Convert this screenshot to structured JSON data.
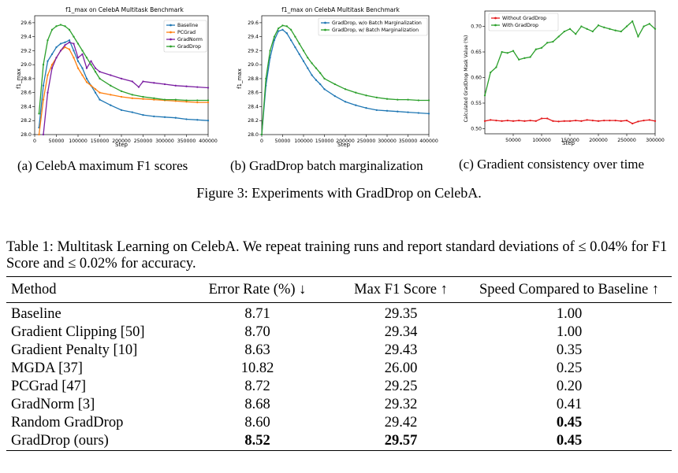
{
  "charts": [
    {
      "type": "line",
      "title": "f1_max on CelebA Multitask Benchmark",
      "xlabel": "Step",
      "ylabel": "f1_max",
      "xlim": [
        0,
        400000
      ],
      "ylim": [
        28.0,
        29.7
      ],
      "xticks": [
        0,
        50000,
        100000,
        150000,
        200000,
        250000,
        300000,
        350000,
        400000
      ],
      "yticks": [
        28.0,
        28.2,
        28.4,
        28.6,
        28.8,
        29.0,
        29.2,
        29.4,
        29.6
      ],
      "ydecimals": 1,
      "legend_position": "top-right",
      "series": [
        {
          "name": "Baseline",
          "color": "#1f77b4",
          "x": [
            10000,
            20000,
            30000,
            40000,
            50000,
            60000,
            70000,
            80000,
            90000,
            100000,
            110000,
            120000,
            130000,
            140000,
            150000,
            175000,
            200000,
            225000,
            250000,
            275000,
            300000,
            325000,
            350000,
            375000,
            400000
          ],
          "y": [
            28.1,
            28.7,
            29.05,
            29.15,
            29.25,
            29.3,
            29.32,
            29.35,
            29.2,
            29.05,
            28.95,
            28.8,
            28.7,
            28.6,
            28.5,
            28.42,
            28.35,
            28.32,
            28.28,
            28.26,
            28.25,
            28.24,
            28.22,
            28.21,
            28.2
          ]
        },
        {
          "name": "PCGrad",
          "color": "#ff7f0e",
          "x": [
            10000,
            20000,
            30000,
            40000,
            50000,
            60000,
            70000,
            80000,
            90000,
            100000,
            110000,
            120000,
            130000,
            140000,
            150000,
            175000,
            200000,
            225000,
            250000,
            275000,
            300000,
            325000,
            350000,
            375000,
            400000
          ],
          "y": [
            28.0,
            28.5,
            28.85,
            29.0,
            29.1,
            29.2,
            29.25,
            29.22,
            29.1,
            28.95,
            28.85,
            28.75,
            28.7,
            28.65,
            28.6,
            28.57,
            28.54,
            28.52,
            28.51,
            28.5,
            28.49,
            28.48,
            28.47,
            28.46,
            28.46
          ]
        },
        {
          "name": "GradNorm",
          "color": "#7b1fa2",
          "x": [
            20000,
            30000,
            40000,
            50000,
            60000,
            70000,
            80000,
            90000,
            100000,
            110000,
            120000,
            130000,
            140000,
            150000,
            175000,
            200000,
            225000,
            240000,
            250000,
            275000,
            300000,
            325000,
            350000,
            375000,
            400000
          ],
          "y": [
            28.0,
            28.6,
            28.95,
            29.1,
            29.2,
            29.28,
            29.32,
            29.3,
            29.1,
            29.15,
            28.95,
            29.05,
            28.95,
            28.9,
            28.85,
            28.8,
            28.76,
            28.68,
            28.76,
            28.74,
            28.72,
            28.7,
            28.69,
            28.68,
            28.67
          ]
        },
        {
          "name": "GradDrop",
          "color": "#2ca02c",
          "x": [
            10000,
            20000,
            30000,
            40000,
            50000,
            60000,
            70000,
            80000,
            90000,
            100000,
            110000,
            120000,
            130000,
            140000,
            150000,
            175000,
            200000,
            225000,
            250000,
            275000,
            300000,
            325000,
            350000,
            375000,
            400000
          ],
          "y": [
            28.3,
            29.0,
            29.35,
            29.5,
            29.55,
            29.57,
            29.55,
            29.5,
            29.4,
            29.3,
            29.2,
            29.1,
            29.0,
            28.9,
            28.8,
            28.7,
            28.62,
            28.57,
            28.54,
            28.52,
            28.5,
            28.5,
            28.49,
            28.49,
            28.49
          ]
        }
      ]
    },
    {
      "type": "line",
      "title": "f1_max on CelebA Multitask Benchmark",
      "xlabel": "Step",
      "ylabel": "f1_max",
      "xlim": [
        0,
        400000
      ],
      "ylim": [
        28.0,
        29.7
      ],
      "xticks": [
        0,
        50000,
        100000,
        150000,
        200000,
        250000,
        300000,
        350000,
        400000
      ],
      "yticks": [
        28.0,
        28.2,
        28.4,
        28.6,
        28.8,
        29.0,
        29.2,
        29.4,
        29.6
      ],
      "ydecimals": 1,
      "legend_position": "top-right",
      "series": [
        {
          "name": "GradDrop, w/o Batch Marginalization",
          "color": "#1f77b4",
          "x": [
            0,
            10000,
            20000,
            30000,
            40000,
            50000,
            60000,
            70000,
            80000,
            90000,
            100000,
            110000,
            120000,
            130000,
            140000,
            150000,
            175000,
            200000,
            225000,
            250000,
            275000,
            300000,
            325000,
            350000,
            375000,
            400000
          ],
          "y": [
            28.0,
            28.7,
            29.1,
            29.35,
            29.48,
            29.5,
            29.45,
            29.35,
            29.25,
            29.15,
            29.05,
            28.95,
            28.85,
            28.78,
            28.72,
            28.65,
            28.55,
            28.47,
            28.42,
            28.38,
            28.35,
            28.34,
            28.33,
            28.32,
            28.31,
            28.3
          ]
        },
        {
          "name": "GradDrop, w/ Batch Marginalization",
          "color": "#2ca02c",
          "x": [
            0,
            10000,
            20000,
            30000,
            40000,
            50000,
            60000,
            70000,
            80000,
            90000,
            100000,
            110000,
            120000,
            130000,
            140000,
            150000,
            175000,
            200000,
            225000,
            250000,
            275000,
            300000,
            325000,
            350000,
            375000,
            400000
          ],
          "y": [
            28.0,
            28.8,
            29.2,
            29.4,
            29.52,
            29.56,
            29.55,
            29.5,
            29.4,
            29.3,
            29.2,
            29.1,
            29.02,
            28.95,
            28.88,
            28.8,
            28.72,
            28.65,
            28.6,
            28.56,
            28.53,
            28.51,
            28.5,
            28.5,
            28.49,
            28.49
          ]
        }
      ]
    },
    {
      "type": "line",
      "title": "",
      "xlabel": "Step",
      "ylabel": "Calculated GradDrop Mask Value (%)",
      "xlim": [
        0,
        300000
      ],
      "ylim": [
        0.49,
        0.73
      ],
      "xticks": [
        50000,
        100000,
        150000,
        200000,
        250000,
        300000
      ],
      "yticks": [
        0.5,
        0.55,
        0.6,
        0.65,
        0.7
      ],
      "ydecimals": 2,
      "legend_position": "top-left",
      "series": [
        {
          "name": "Without GradDrop",
          "color": "#e41a1c",
          "x": [
            0,
            10000,
            20000,
            30000,
            40000,
            50000,
            60000,
            70000,
            80000,
            90000,
            100000,
            110000,
            120000,
            130000,
            140000,
            150000,
            160000,
            170000,
            180000,
            190000,
            200000,
            210000,
            220000,
            230000,
            240000,
            250000,
            260000,
            270000,
            280000,
            290000,
            300000
          ],
          "y": [
            0.515,
            0.517,
            0.516,
            0.515,
            0.516,
            0.515,
            0.516,
            0.515,
            0.516,
            0.515,
            0.52,
            0.52,
            0.515,
            0.514,
            0.515,
            0.515,
            0.516,
            0.515,
            0.517,
            0.516,
            0.515,
            0.516,
            0.516,
            0.516,
            0.515,
            0.516,
            0.51,
            0.514,
            0.516,
            0.517,
            0.515
          ]
        },
        {
          "name": "With GradDrop",
          "color": "#2ca02c",
          "x": [
            0,
            10000,
            20000,
            30000,
            40000,
            50000,
            60000,
            70000,
            80000,
            90000,
            100000,
            110000,
            120000,
            130000,
            140000,
            150000,
            160000,
            170000,
            180000,
            190000,
            200000,
            210000,
            220000,
            230000,
            240000,
            250000,
            260000,
            270000,
            280000,
            290000,
            300000
          ],
          "y": [
            0.565,
            0.61,
            0.62,
            0.65,
            0.648,
            0.652,
            0.635,
            0.638,
            0.64,
            0.655,
            0.658,
            0.668,
            0.67,
            0.68,
            0.69,
            0.695,
            0.685,
            0.7,
            0.695,
            0.69,
            0.702,
            0.698,
            0.695,
            0.692,
            0.69,
            0.7,
            0.71,
            0.68,
            0.7,
            0.705,
            0.695
          ]
        }
      ]
    }
  ],
  "subcaptions": [
    "(a) CelebA maximum F1 scores",
    "(b) GradDrop batch marginalization",
    "(c) Gradient consistency over time"
  ],
  "figure_caption": "Figure 3: Experiments with GradDrop on CelebA.",
  "table_caption": "Table 1: Multitask Learning on CelebA. We repeat training runs and report standard deviations of ≤ 0.04% for F1 Score and ≤ 0.02% for accuracy.",
  "table": {
    "headers": [
      "Method",
      "Error Rate (%) ↓",
      "Max F1 Score ↑",
      "Speed Compared to Baseline ↑"
    ],
    "rows": [
      [
        "Baseline",
        "8.71",
        "29.35",
        "1.00"
      ],
      [
        "Gradient Clipping [50]",
        "8.70",
        "29.34",
        "1.00"
      ],
      [
        "Gradient Penalty [10]",
        "8.63",
        "29.43",
        "0.35"
      ],
      [
        "MGDA [37]",
        "10.82",
        "26.00",
        "0.25"
      ],
      [
        "PCGrad [47]",
        "8.72",
        "29.25",
        "0.20"
      ],
      [
        "GradNorm [3]",
        "8.68",
        "29.32",
        "0.41"
      ],
      [
        "Random GradDrop",
        "8.60",
        "29.42",
        "0.45"
      ],
      [
        "GradDrop (ours)",
        "8.52",
        "29.57",
        "0.45"
      ]
    ]
  }
}
